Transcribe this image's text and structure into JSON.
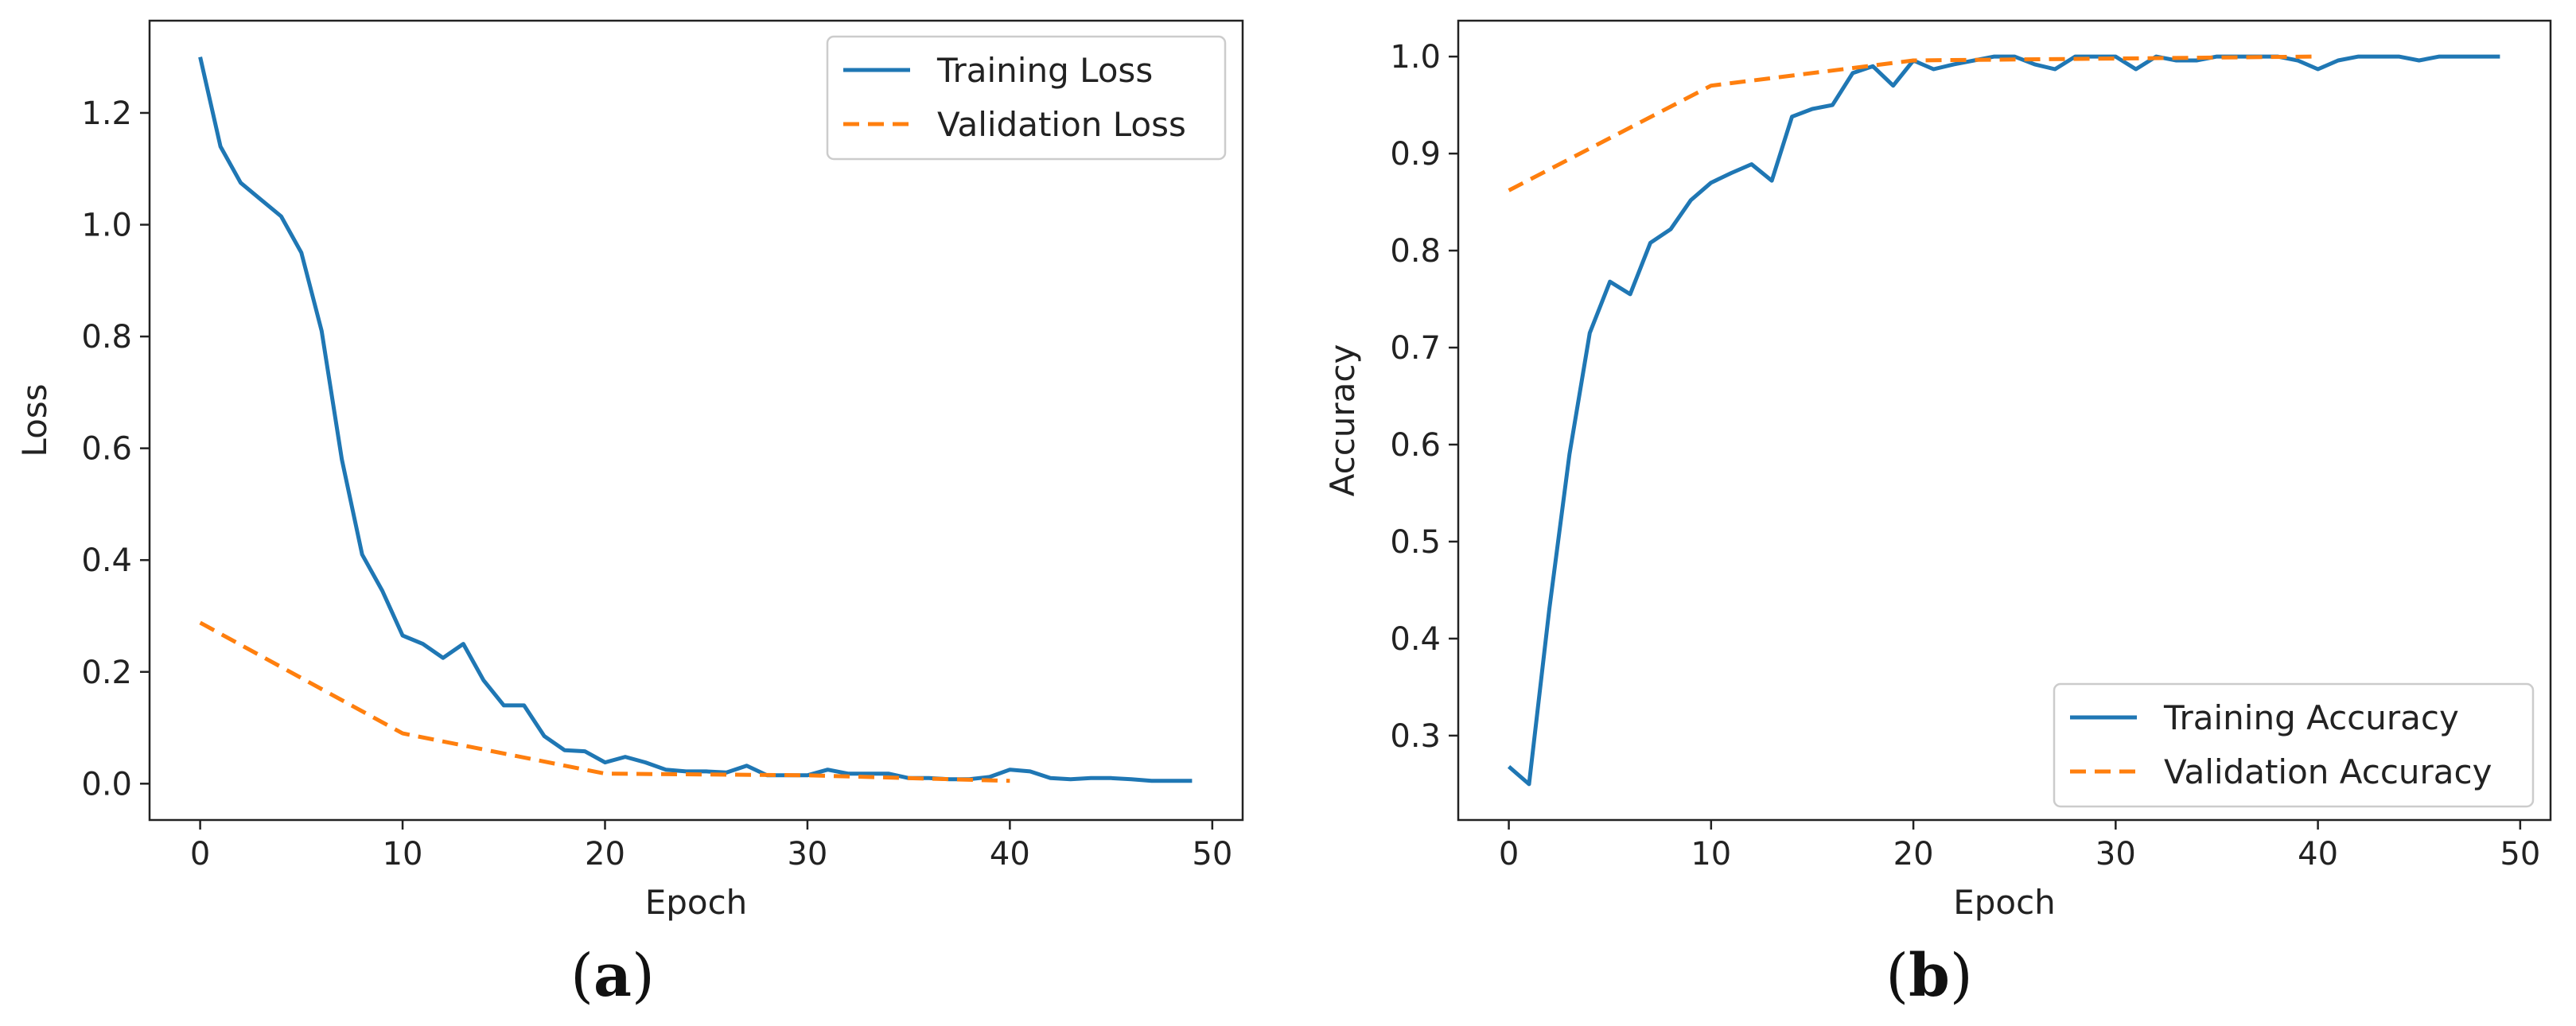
{
  "colors": {
    "training": "#1f77b4",
    "validation": "#ff7f0e",
    "axis": "#222222"
  },
  "chart_data": [
    {
      "type": "line",
      "panel_label": "a",
      "caption_open": "(",
      "caption_close": ")",
      "title": "",
      "xlabel": "Epoch",
      "ylabel": "Loss",
      "xlim": [
        -2.5,
        51.5
      ],
      "ylim": [
        -0.065,
        1.365
      ],
      "xticks": [
        0,
        10,
        20,
        30,
        40,
        50
      ],
      "xtick_labels": [
        "0",
        "10",
        "20",
        "30",
        "40",
        "50"
      ],
      "yticks": [
        0.0,
        0.2,
        0.4,
        0.6,
        0.8,
        1.0,
        1.2
      ],
      "ytick_labels": [
        "0.0",
        "0.2",
        "0.4",
        "0.6",
        "0.8",
        "1.0",
        "1.2"
      ],
      "legend_position": "top-right",
      "series": [
        {
          "name": "Training Loss",
          "style": "solid",
          "x": [
            0,
            1,
            2,
            3,
            4,
            5,
            6,
            7,
            8,
            9,
            10,
            11,
            12,
            13,
            14,
            15,
            16,
            17,
            18,
            19,
            20,
            21,
            22,
            23,
            24,
            25,
            26,
            27,
            28,
            29,
            30,
            31,
            32,
            33,
            34,
            35,
            36,
            37,
            38,
            39,
            40,
            41,
            42,
            43,
            44,
            45,
            46,
            47,
            48,
            49
          ],
          "y": [
            1.3,
            1.14,
            1.075,
            1.045,
            1.015,
            0.95,
            0.81,
            0.58,
            0.41,
            0.345,
            0.265,
            0.25,
            0.225,
            0.25,
            0.185,
            0.14,
            0.14,
            0.085,
            0.06,
            0.058,
            0.038,
            0.048,
            0.038,
            0.025,
            0.022,
            0.022,
            0.02,
            0.032,
            0.015,
            0.015,
            0.015,
            0.025,
            0.018,
            0.018,
            0.018,
            0.01,
            0.01,
            0.008,
            0.008,
            0.012,
            0.025,
            0.022,
            0.01,
            0.008,
            0.01,
            0.01,
            0.008,
            0.005,
            0.005,
            0.005
          ]
        },
        {
          "name": "Validation Loss",
          "style": "dashed",
          "x": [
            0,
            10,
            20,
            30,
            40
          ],
          "y": [
            0.288,
            0.09,
            0.018,
            0.015,
            0.005
          ]
        }
      ]
    },
    {
      "type": "line",
      "panel_label": "b",
      "caption_open": "(",
      "caption_close": ")",
      "title": "",
      "xlabel": "Epoch",
      "ylabel": "Accuracy",
      "xlim": [
        -2.5,
        51.5
      ],
      "ylim": [
        0.213,
        1.037
      ],
      "xticks": [
        0,
        10,
        20,
        30,
        40,
        50
      ],
      "xtick_labels": [
        "0",
        "10",
        "20",
        "30",
        "40",
        "50"
      ],
      "yticks": [
        0.3,
        0.4,
        0.5,
        0.6,
        0.7,
        0.8,
        0.9,
        1.0
      ],
      "ytick_labels": [
        "0.3",
        "0.4",
        "0.5",
        "0.6",
        "0.7",
        "0.8",
        "0.9",
        "1.0"
      ],
      "legend_position": "bottom-right",
      "series": [
        {
          "name": "Training Accuracy",
          "style": "solid",
          "x": [
            0,
            1,
            2,
            3,
            4,
            5,
            6,
            7,
            8,
            9,
            10,
            11,
            12,
            13,
            14,
            15,
            16,
            17,
            18,
            19,
            20,
            21,
            22,
            23,
            24,
            25,
            26,
            27,
            28,
            29,
            30,
            31,
            32,
            33,
            34,
            35,
            36,
            37,
            38,
            39,
            40,
            41,
            42,
            43,
            44,
            45,
            46,
            47,
            48,
            49
          ],
          "y": [
            0.268,
            0.25,
            0.43,
            0.59,
            0.715,
            0.768,
            0.755,
            0.808,
            0.822,
            0.852,
            0.87,
            0.88,
            0.889,
            0.872,
            0.938,
            0.946,
            0.95,
            0.983,
            0.99,
            0.97,
            0.996,
            0.987,
            0.992,
            0.996,
            1.0,
            1.0,
            0.992,
            0.987,
            1.0,
            1.0,
            1.0,
            0.987,
            1.0,
            0.996,
            0.996,
            1.0,
            1.0,
            1.0,
            1.0,
            0.996,
            0.987,
            0.996,
            1.0,
            1.0,
            1.0,
            0.996,
            1.0,
            1.0,
            1.0,
            1.0
          ]
        },
        {
          "name": "Validation Accuracy",
          "style": "dashed",
          "x": [
            0,
            10,
            20,
            30,
            40
          ],
          "y": [
            0.862,
            0.97,
            0.996,
            0.998,
            1.0
          ]
        }
      ]
    }
  ]
}
